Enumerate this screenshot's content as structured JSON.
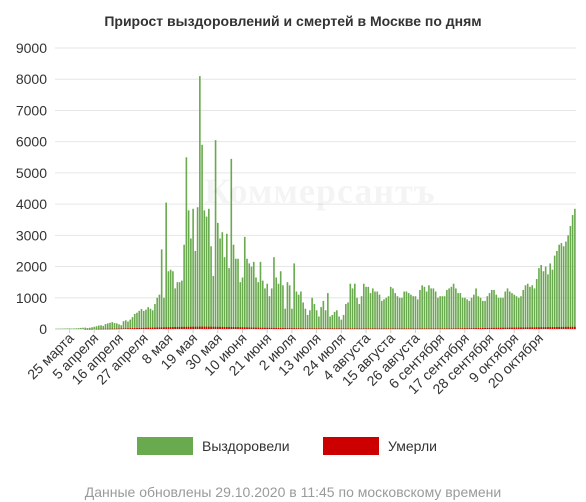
{
  "chart_data": {
    "type": "bar",
    "title": "Прирост выздоровлений и смертей в Москве по дням",
    "xlabel": "",
    "ylabel": "",
    "ylim": [
      0,
      9000
    ],
    "yticks": [
      "0",
      "1000",
      "2000",
      "3000",
      "4000",
      "5000",
      "6000",
      "7000",
      "8000",
      "9000"
    ],
    "grid": true,
    "stacked": true,
    "x_start_date": "2020-03-19",
    "x_tick_labels": [
      "25 марта",
      "5 апреля",
      "16 апреля",
      "27 апреля",
      "8 мая",
      "19 мая",
      "30 мая",
      "10 июня",
      "21 июня",
      "2 июля",
      "13 июля",
      "24 июля",
      "4 августа",
      "15 августа",
      "26 августа",
      "6 сентября",
      "17 сентября",
      "28 сентября",
      "9 октября",
      "20 октября"
    ],
    "series": [
      {
        "name": "Выздоровели",
        "color": "#6aaa4f",
        "values": [
          5,
          8,
          10,
          12,
          15,
          18,
          20,
          15,
          18,
          22,
          28,
          35,
          40,
          45,
          30,
          40,
          55,
          70,
          90,
          110,
          120,
          100,
          160,
          180,
          200,
          220,
          190,
          180,
          150,
          120,
          250,
          280,
          240,
          300,
          380,
          480,
          520,
          580,
          640,
          580,
          620,
          700,
          650,
          600,
          800,
          1000,
          1100,
          2550,
          1000,
          4050,
          1850,
          1900,
          1850,
          1300,
          1500,
          1500,
          1550,
          2700,
          5500,
          3800,
          2900,
          3850,
          2500,
          3900,
          8100,
          5900,
          3800,
          3600,
          3850,
          2650,
          1700,
          6050,
          3400,
          2900,
          3100,
          2300,
          3050,
          1950,
          5450,
          2700,
          2250,
          2250,
          1500,
          1650,
          2950,
          2250,
          2100,
          2000,
          2150,
          1650,
          1500,
          2150,
          1550,
          1300,
          1450,
          1050,
          1300,
          2300,
          1650,
          1450,
          1850,
          1400,
          650,
          1500,
          1400,
          650,
          2100,
          1200,
          1100,
          1200,
          850,
          650,
          450,
          600,
          1000,
          800,
          600,
          400,
          700,
          900,
          600,
          1150,
          400,
          450,
          550,
          600,
          400,
          300,
          450,
          800,
          850,
          1450,
          1300,
          1450,
          1000,
          800,
          1050,
          1450,
          1350,
          1350,
          1150,
          1300,
          1200,
          1200,
          1100,
          900,
          950,
          1000,
          1050,
          1350,
          1300,
          1150,
          1050,
          1000,
          1000,
          1200,
          1200,
          1150,
          1100,
          1050,
          1050,
          950,
          1250,
          1400,
          1350,
          1200,
          1400,
          1300,
          1300,
          1200,
          1000,
          1050,
          1050,
          1050,
          1250,
          1300,
          1350,
          1450,
          1300,
          1150,
          1150,
          1000,
          1000,
          950,
          900,
          1000,
          1100,
          1300,
          1050,
          1000,
          900,
          900,
          1050,
          1150,
          1250,
          1250,
          1100,
          1000,
          1000,
          1000,
          1200,
          1300,
          1200,
          1150,
          1100,
          1050,
          1000,
          1050,
          1250,
          1400,
          1450,
          1350,
          1400,
          1300,
          1600,
          1950,
          2050,
          1850,
          2000,
          1750,
          2100,
          1900,
          2350,
          2500,
          2700,
          2750,
          2650,
          2800,
          3000,
          3300,
          3650,
          3850
        ]
      },
      {
        "name": "Умерли",
        "color": "#cc0000",
        "values": [
          0,
          0,
          0,
          0,
          0,
          0,
          0,
          0,
          0,
          0,
          0,
          0,
          0,
          1,
          1,
          1,
          2,
          2,
          3,
          3,
          4,
          5,
          6,
          7,
          8,
          9,
          10,
          12,
          14,
          16,
          18,
          20,
          22,
          24,
          26,
          28,
          30,
          32,
          34,
          36,
          38,
          40,
          42,
          44,
          46,
          48,
          50,
          52,
          54,
          56,
          58,
          60,
          62,
          64,
          65,
          66,
          67,
          68,
          69,
          70,
          71,
          72,
          73,
          74,
          75,
          76,
          75,
          74,
          73,
          72,
          71,
          70,
          69,
          68,
          67,
          66,
          65,
          64,
          63,
          62,
          61,
          60,
          58,
          56,
          54,
          52,
          50,
          48,
          46,
          44,
          42,
          40,
          39,
          38,
          37,
          36,
          35,
          34,
          33,
          32,
          31,
          30,
          29,
          28,
          27,
          26,
          25,
          24,
          23,
          22,
          21,
          20,
          20,
          20,
          20,
          20,
          19,
          19,
          19,
          19,
          18,
          18,
          18,
          18,
          17,
          17,
          17,
          17,
          16,
          16,
          16,
          16,
          16,
          16,
          16,
          16,
          16,
          16,
          16,
          16,
          16,
          16,
          16,
          16,
          16,
          16,
          16,
          16,
          16,
          16,
          16,
          16,
          16,
          16,
          16,
          16,
          16,
          16,
          16,
          16,
          16,
          16,
          16,
          16,
          16,
          16,
          16,
          16,
          16,
          16,
          16,
          16,
          16,
          16,
          16,
          16,
          17,
          18,
          19,
          20,
          21,
          22,
          23,
          24,
          25,
          26,
          27,
          28,
          29,
          30,
          31,
          32,
          33,
          34,
          35,
          36,
          37,
          38,
          39,
          40,
          41,
          42,
          43,
          44,
          45,
          46,
          47,
          48,
          49,
          50,
          51,
          52,
          53,
          54,
          55,
          56,
          57,
          58,
          59,
          60,
          61,
          62,
          63,
          64,
          65,
          66,
          67,
          68,
          69,
          70,
          70,
          70,
          70,
          70,
          70
        ]
      }
    ],
    "legend_position": "bottom"
  },
  "watermark": "Коммерсантъ",
  "footer": "Данные обновлены 29.10.2020 в 11:45 по московскому времени"
}
